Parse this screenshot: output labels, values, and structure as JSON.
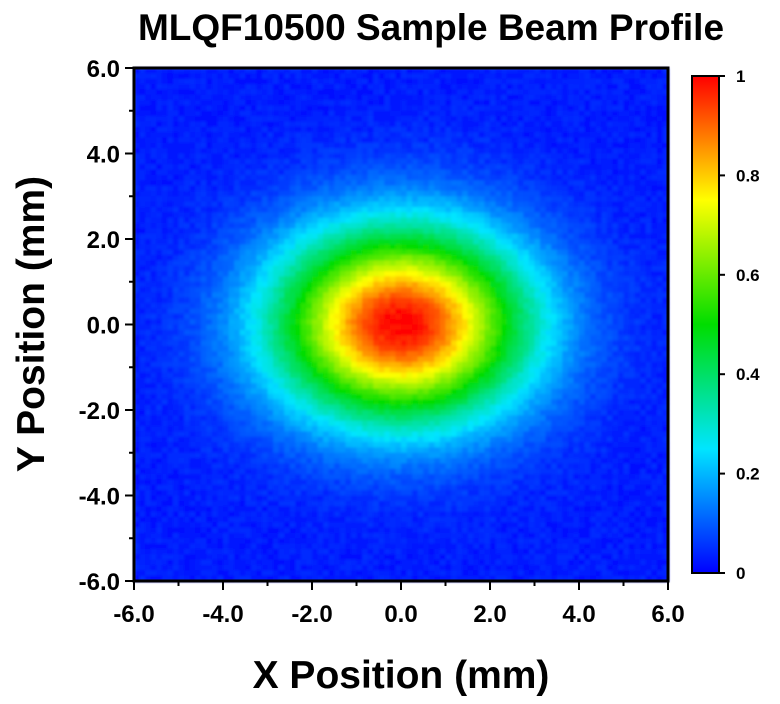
{
  "chart_data": {
    "type": "heatmap",
    "title": "MLQF10500 Sample Beam Profile",
    "xlabel": "X Position (mm)",
    "ylabel": "Y Position (mm)",
    "xlim": [
      -6.0,
      6.0
    ],
    "ylim": [
      -6.0,
      6.0
    ],
    "x_ticks": [
      "-6.0",
      "-4.0",
      "-2.0",
      "0.0",
      "2.0",
      "4.0",
      "6.0"
    ],
    "y_ticks": [
      "6.0",
      "4.0",
      "2.0",
      "0.0",
      "-2.0",
      "-4.0",
      "-6.0"
    ],
    "x_tick_values": [
      -6,
      -4,
      -2,
      0,
      2,
      4,
      6
    ],
    "y_tick_values": [
      6,
      4,
      2,
      0,
      -2,
      -4,
      -6
    ],
    "colorbar": {
      "range": [
        0,
        1
      ],
      "ticks": [
        "0",
        "0.2",
        "0.4",
        "0.6",
        "0.8",
        "1"
      ],
      "tick_values": [
        0,
        0.2,
        0.4,
        0.6,
        0.8,
        1
      ],
      "colormap": "rainbow (blue-cyan-green-yellow-red)",
      "colors": [
        "#0000ff",
        "#00e5ff",
        "#00dd00",
        "#ffff00",
        "#ff0000"
      ]
    },
    "beam": {
      "shape": "gaussian",
      "center_mm": [
        0.0,
        0.0
      ],
      "sigma_x_mm": 1.95,
      "sigma_y_mm": 1.55,
      "peak_intensity": 1.0,
      "background_intensity": 0.03
    },
    "grid": false
  }
}
